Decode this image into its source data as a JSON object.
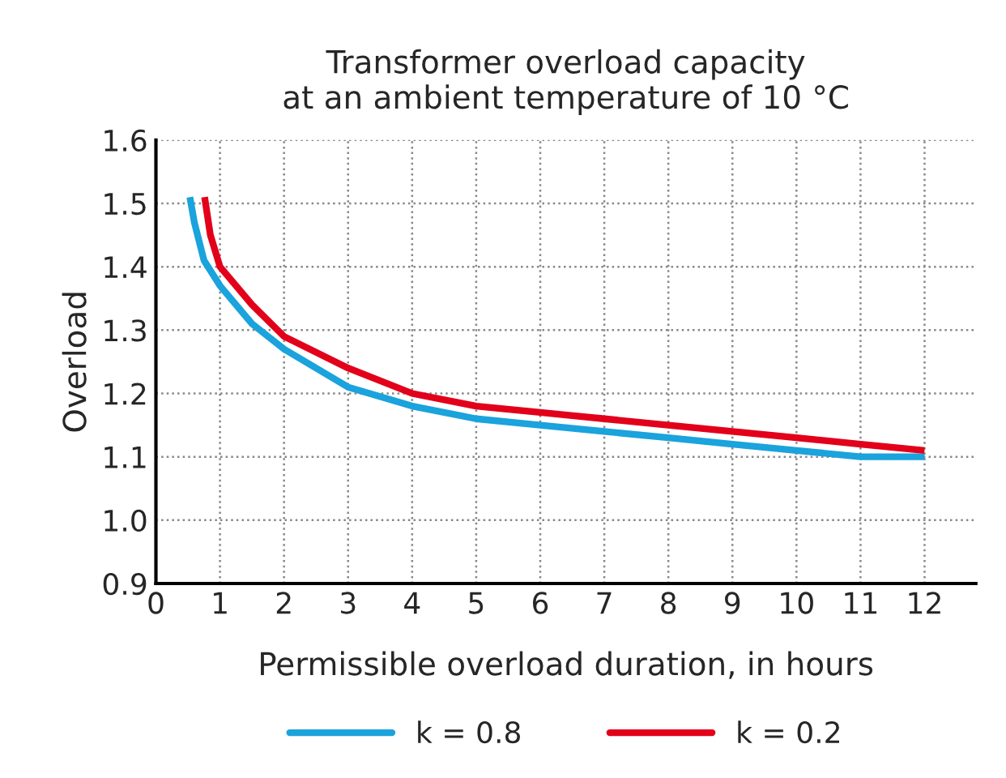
{
  "chart_data": {
    "type": "line",
    "title": "Transformer overload capacity\nat an ambient temperature of 10 °C",
    "xlabel": "Permissible overload duration, in hours",
    "ylabel": "Overload",
    "xlim": [
      0,
      12.8
    ],
    "xticks": [
      0,
      1,
      2,
      3,
      4,
      5,
      6,
      7,
      8,
      9,
      10,
      11,
      12
    ],
    "ylim": [
      0.9,
      1.6
    ],
    "yticks": [
      0.9,
      {
        "value": 1.0,
        "label": "1.0"
      },
      1.1,
      1.2,
      1.3,
      1.4,
      1.5,
      1.6
    ],
    "grid": true,
    "legend": "bottom",
    "line_style": "solid",
    "marker": "none",
    "series": [
      {
        "name": "k = 0.8",
        "color": "#1aa3dc",
        "x": [
          0.53,
          0.6,
          0.75,
          1,
          1.5,
          2,
          3,
          4,
          5,
          6,
          7,
          8,
          9,
          10,
          11,
          12
        ],
        "values": [
          1.51,
          1.47,
          1.41,
          1.37,
          1.31,
          1.27,
          1.21,
          1.18,
          1.16,
          1.15,
          1.14,
          1.13,
          1.12,
          1.11,
          1.1,
          1.1
        ]
      },
      {
        "name": "k = 0.2",
        "color": "#e2001a",
        "x": [
          0.76,
          0.85,
          1,
          1.5,
          2,
          3,
          4,
          5,
          6,
          7,
          8,
          9,
          10,
          11,
          12
        ],
        "values": [
          1.51,
          1.45,
          1.4,
          1.34,
          1.29,
          1.24,
          1.2,
          1.18,
          1.17,
          1.16,
          1.15,
          1.14,
          1.13,
          1.12,
          1.11
        ]
      }
    ]
  }
}
